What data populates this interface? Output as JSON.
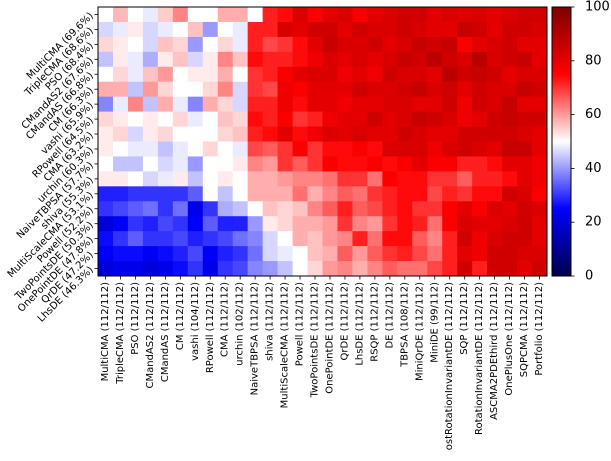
{
  "chart_data": {
    "type": "heatmap",
    "title": "",
    "xlabel": "",
    "ylabel": "",
    "colormap": "seismic",
    "colormap_stops": [
      "#00004c",
      "#0000ff",
      "#ffffff",
      "#ff0000",
      "#7f0000"
    ],
    "value_range": [
      0,
      100
    ],
    "colorbar_ticks": [
      0,
      20,
      40,
      60,
      80,
      100
    ],
    "y_labels": [
      "MultiCMA (69.6%)",
      "TripleCMA (68.6%)",
      "PSO (68.4%)",
      "CMandAS2 (67.6%)",
      "CMandAS (66.8%)",
      "CM (66.3%)",
      "vashi (65.9%)",
      "RPowell (64.5%)",
      "CMA (63.2%)",
      "urchin (60.3%)",
      "NaiveTBPSA (57.7%)",
      "shiva (55.3%)",
      "MultiScaleCMA (53.1%)",
      "Powell (52.2%)",
      "TwoPointsDE (50.3%)",
      "OnePointDE (47.8%)",
      "QrDE (47.2%)",
      "LhsDE (46.3%)"
    ],
    "x_labels": [
      "MultiCMA (112/112)",
      "TripleCMA (112/112)",
      "PSO (112/112)",
      "CMandAS2 (112/112)",
      "CMandAS (112/112)",
      "CM (112/112)",
      "vashi (104/112)",
      "RPowell (112/112)",
      "CMA (112/112)",
      "urchin (102/112)",
      "NaiveTBPSA (112/112)",
      "shiva (112/112)",
      "MultiScaleCMA (112/112)",
      "Powell (112/112)",
      "TwoPointsDE (112/112)",
      "OnePointDE (112/112)",
      "QrDE (112/112)",
      "LhsDE (112/112)",
      "RSQP (112/112)",
      "DE (112/112)",
      "TBPSA (108/112)",
      "MiniQrDE (112/112)",
      "MiniDE (99/112)",
      "ostRotationInvariantDE (112/112)",
      "SQP (112/112)",
      "RotationInvariantDE (112/112)",
      "ASCMA2PDEthird (112/112)",
      "OnePlusOne (112/112)",
      "SQPCMA (112/112)",
      "Portfolio (112/112)"
    ],
    "matrix": [
      [
        50,
        57,
        50,
        48,
        55,
        62,
        50,
        50,
        58,
        58,
        50,
        72,
        74,
        82,
        76,
        80,
        82,
        76,
        80,
        82,
        84,
        84,
        80,
        82,
        81,
        82,
        80,
        82,
        84,
        84
      ],
      [
        46,
        48,
        52,
        46,
        48,
        50,
        56,
        40,
        50,
        48,
        72,
        72,
        82,
        80,
        84,
        84,
        80,
        84,
        82,
        82,
        84,
        82,
        80,
        80,
        86,
        84,
        80,
        84,
        84,
        82
      ],
      [
        54,
        52,
        50,
        46,
        56,
        54,
        40,
        50,
        54,
        48,
        72,
        68,
        70,
        74,
        80,
        86,
        82,
        82,
        84,
        80,
        82,
        86,
        84,
        86,
        76,
        80,
        82,
        84,
        80,
        80
      ],
      [
        44,
        52,
        48,
        42,
        52,
        56,
        46,
        52,
        62,
        56,
        74,
        72,
        72,
        74,
        78,
        82,
        80,
        82,
        80,
        82,
        86,
        84,
        88,
        84,
        82,
        88,
        82,
        84,
        86,
        80
      ],
      [
        50,
        54,
        48,
        56,
        60,
        50,
        52,
        52,
        58,
        50,
        70,
        72,
        76,
        80,
        82,
        82,
        78,
        80,
        78,
        84,
        82,
        82,
        80,
        88,
        84,
        86,
        84,
        80,
        82,
        82
      ],
      [
        58,
        58,
        44,
        60,
        54,
        50,
        50,
        54,
        62,
        46,
        70,
        68,
        78,
        76,
        80,
        80,
        80,
        84,
        82,
        82,
        84,
        86,
        82,
        84,
        80,
        84,
        82,
        82,
        86,
        84
      ],
      [
        38,
        48,
        62,
        44,
        58,
        48,
        38,
        58,
        54,
        46,
        72,
        72,
        78,
        74,
        80,
        80,
        78,
        80,
        80,
        82,
        82,
        80,
        80,
        84,
        78,
        84,
        82,
        86,
        80,
        80
      ],
      [
        54,
        52,
        50,
        52,
        50,
        54,
        48,
        50,
        56,
        54,
        74,
        72,
        76,
        70,
        72,
        78,
        80,
        80,
        84,
        80,
        82,
        86,
        84,
        82,
        78,
        80,
        84,
        86,
        84,
        84
      ],
      [
        52,
        54,
        46,
        52,
        54,
        50,
        50,
        50,
        54,
        56,
        72,
        74,
        80,
        74,
        78,
        82,
        80,
        82,
        80,
        80,
        84,
        82,
        80,
        80,
        84,
        84,
        84,
        84,
        82,
        80
      ],
      [
        52,
        50,
        48,
        48,
        44,
        48,
        50,
        54,
        50,
        48,
        68,
        66,
        70,
        76,
        70,
        74,
        74,
        76,
        74,
        82,
        82,
        82,
        78,
        82,
        84,
        82,
        80,
        86,
        86,
        80
      ],
      [
        50,
        44,
        44,
        50,
        46,
        48,
        40,
        50,
        50,
        52,
        62,
        60,
        70,
        66,
        70,
        76,
        74,
        74,
        76,
        74,
        76,
        80,
        76,
        76,
        72,
        72,
        74,
        80,
        80,
        78
      ],
      [
        52,
        52,
        50,
        46,
        48,
        52,
        44,
        50,
        52,
        50,
        58,
        58,
        60,
        62,
        62,
        64,
        70,
        70,
        64,
        76,
        74,
        74,
        70,
        70,
        66,
        72,
        72,
        74,
        80,
        78
      ],
      [
        28,
        28,
        30,
        30,
        30,
        30,
        34,
        50,
        44,
        50,
        58,
        58,
        58,
        64,
        58,
        62,
        66,
        64,
        70,
        72,
        74,
        74,
        68,
        72,
        70,
        74,
        74,
        84,
        82,
        76
      ],
      [
        30,
        32,
        34,
        36,
        30,
        36,
        22,
        30,
        42,
        44,
        50,
        56,
        54,
        56,
        62,
        66,
        72,
        66,
        68,
        72,
        74,
        70,
        70,
        76,
        80,
        76,
        82,
        80,
        84,
        82
      ],
      [
        20,
        24,
        30,
        28,
        32,
        30,
        24,
        34,
        28,
        28,
        40,
        52,
        54,
        58,
        58,
        60,
        70,
        62,
        60,
        70,
        74,
        72,
        64,
        76,
        82,
        80,
        80,
        82,
        84,
        80
      ],
      [
        26,
        30,
        34,
        30,
        30,
        32,
        28,
        30,
        32,
        36,
        38,
        46,
        50,
        58,
        56,
        60,
        62,
        72,
        64,
        74,
        74,
        66,
        62,
        72,
        84,
        78,
        82,
        84,
        84,
        80
      ],
      [
        24,
        26,
        26,
        24,
        26,
        28,
        32,
        24,
        28,
        30,
        36,
        46,
        48,
        50,
        56,
        58,
        66,
        60,
        66,
        70,
        72,
        68,
        64,
        72,
        80,
        78,
        84,
        84,
        82,
        82
      ],
      [
        20,
        22,
        22,
        20,
        22,
        26,
        30,
        22,
        30,
        32,
        38,
        40,
        44,
        50,
        54,
        60,
        62,
        58,
        62,
        66,
        64,
        64,
        68,
        72,
        84,
        72,
        84,
        84,
        80,
        84
      ]
    ]
  }
}
